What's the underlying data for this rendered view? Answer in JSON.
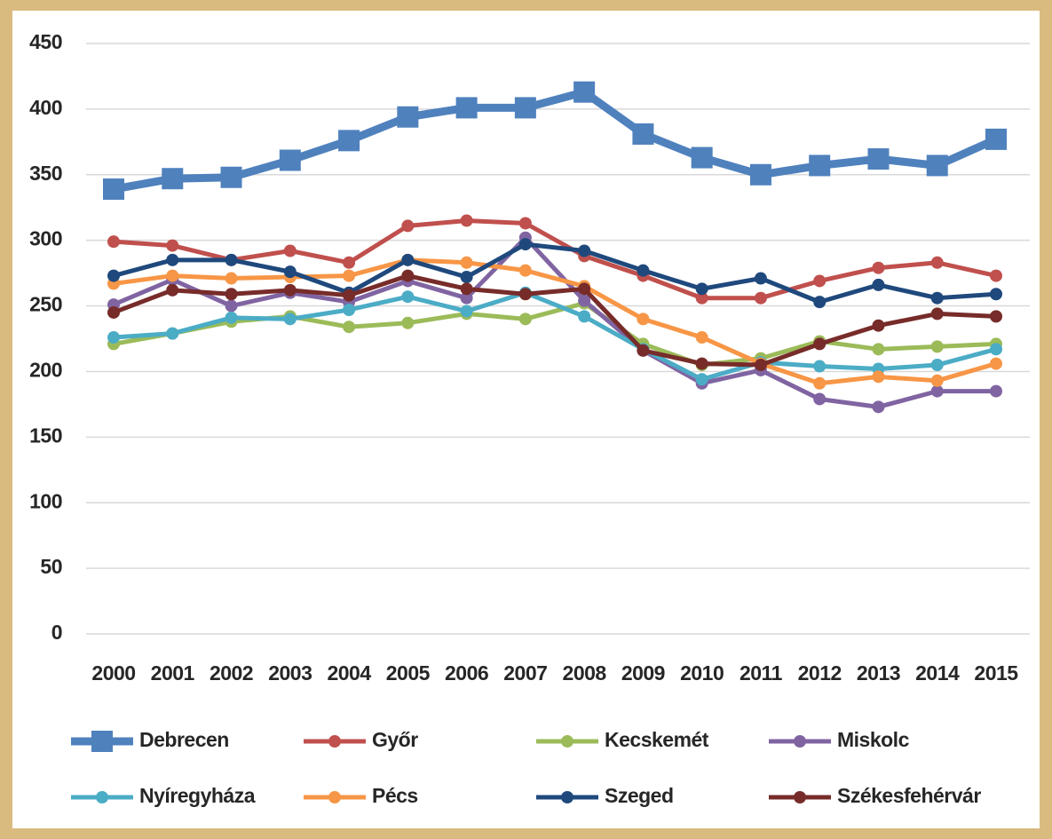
{
  "chart_data": {
    "type": "line",
    "categories": [
      "2000",
      "2001",
      "2002",
      "2003",
      "2004",
      "2005",
      "2006",
      "2007",
      "2008",
      "2009",
      "2010",
      "2011",
      "2012",
      "2013",
      "2014",
      "2015"
    ],
    "ylim": [
      0,
      450
    ],
    "yticks": [
      0,
      50,
      100,
      150,
      200,
      250,
      300,
      350,
      400,
      450
    ],
    "grid": true,
    "legend": "bottom",
    "series": [
      {
        "name": "Debrecen",
        "color": "#4f81bd",
        "marker": "square",
        "values": [
          339,
          347,
          348,
          361,
          376,
          394,
          401,
          401,
          413,
          381,
          363,
          350,
          357,
          362,
          357,
          377
        ]
      },
      {
        "name": "Győr",
        "color": "#c0504d",
        "marker": "circle",
        "values": [
          299,
          296,
          285,
          292,
          283,
          311,
          315,
          313,
          288,
          273,
          256,
          256,
          269,
          279,
          283,
          273
        ]
      },
      {
        "name": "Kecskemét",
        "color": "#9bbb59",
        "marker": "circle",
        "values": [
          221,
          229,
          238,
          242,
          234,
          237,
          244,
          240,
          252,
          221,
          205,
          210,
          223,
          217,
          219,
          221
        ]
      },
      {
        "name": "Miskolc",
        "color": "#8064a2",
        "marker": "circle",
        "values": [
          251,
          270,
          250,
          260,
          253,
          269,
          256,
          302,
          254,
          216,
          191,
          201,
          179,
          173,
          185,
          185
        ]
      },
      {
        "name": "Nyíregyháza",
        "color": "#4bacc6",
        "marker": "circle",
        "values": [
          226,
          229,
          241,
          240,
          247,
          257,
          246,
          260,
          242,
          217,
          194,
          207,
          204,
          202,
          205,
          217
        ]
      },
      {
        "name": "Pécs",
        "color": "#f79646",
        "marker": "circle",
        "values": [
          267,
          273,
          271,
          272,
          273,
          285,
          283,
          277,
          265,
          240,
          226,
          206,
          191,
          196,
          193,
          206
        ]
      },
      {
        "name": "Szeged",
        "color": "#1f497d",
        "marker": "circle",
        "values": [
          273,
          285,
          285,
          276,
          260,
          285,
          272,
          297,
          292,
          277,
          263,
          271,
          253,
          266,
          256,
          259
        ]
      },
      {
        "name": "Székesfehérvár",
        "color": "#772c2a",
        "marker": "circle",
        "values": [
          245,
          262,
          259,
          262,
          258,
          273,
          263,
          259,
          263,
          216,
          206,
          205,
          221,
          235,
          244,
          242
        ]
      }
    ]
  }
}
